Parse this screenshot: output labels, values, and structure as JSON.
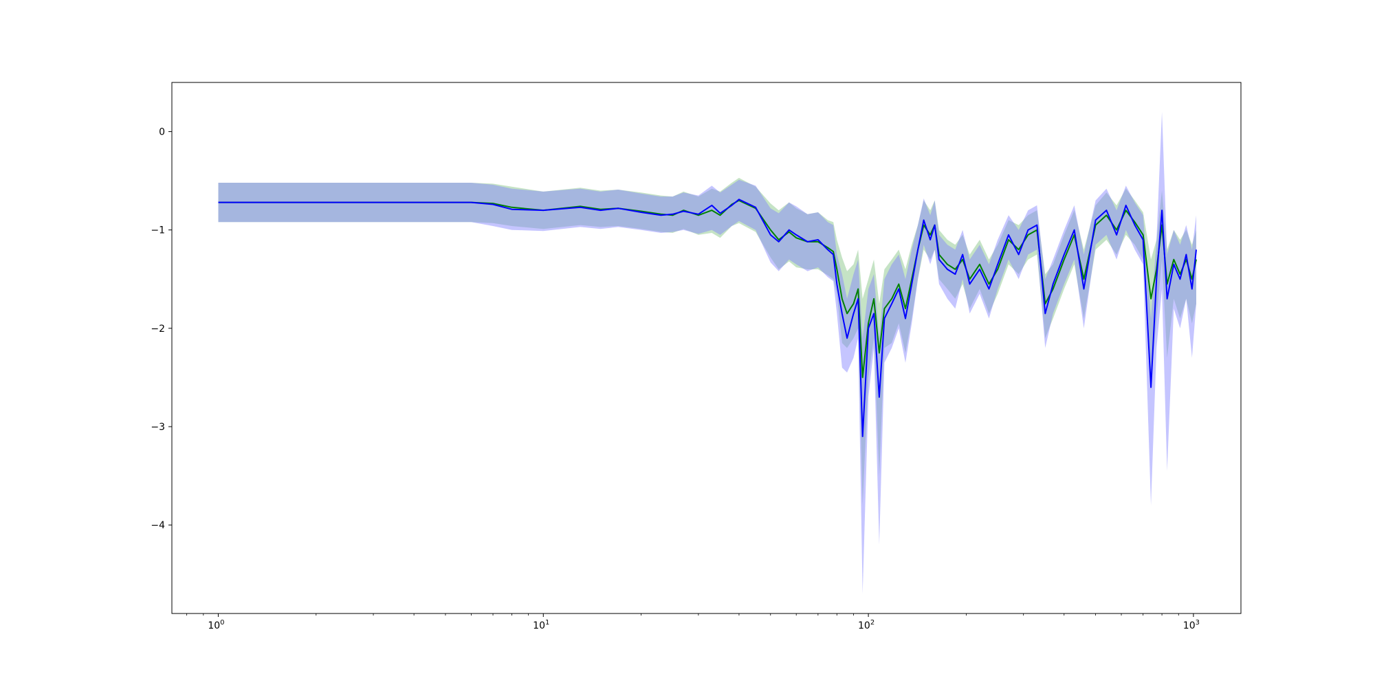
{
  "chart_data": {
    "type": "line",
    "title": "",
    "xlabel": "",
    "ylabel": "",
    "xscale": "log",
    "xlim": [
      0.72,
      1400
    ],
    "ylim": [
      -4.9,
      0.5
    ],
    "grid": false,
    "legend": "none",
    "x_ticks": [
      {
        "value": 1,
        "base": "10",
        "exp": "0"
      },
      {
        "value": 10,
        "base": "10",
        "exp": "1"
      },
      {
        "value": 100,
        "base": "10",
        "exp": "2"
      },
      {
        "value": 1000,
        "base": "10",
        "exp": "3"
      }
    ],
    "y_ticks": [
      {
        "value": 0,
        "label": "0"
      },
      {
        "value": -1,
        "label": "−1"
      },
      {
        "value": -2,
        "label": "−2"
      },
      {
        "value": -3,
        "label": "−3"
      },
      {
        "value": -4,
        "label": "−4"
      }
    ],
    "series": [
      {
        "color": "#008000",
        "band_color": "#7fc07f",
        "band_opacity": 0.45,
        "points": [
          [
            1,
            -0.72,
            -0.92,
            -0.52
          ],
          [
            6,
            -0.72,
            -0.92,
            -0.52
          ],
          [
            7,
            -0.73,
            -0.93,
            -0.53
          ],
          [
            8,
            -0.77,
            -0.96,
            -0.56
          ],
          [
            10,
            -0.8,
            -0.99,
            -0.61
          ],
          [
            13,
            -0.76,
            -0.95,
            -0.57
          ],
          [
            15,
            -0.79,
            -0.97,
            -0.6
          ],
          [
            17,
            -0.78,
            -0.96,
            -0.59
          ],
          [
            20,
            -0.81,
            -0.99,
            -0.62
          ],
          [
            23,
            -0.84,
            -1.02,
            -0.65
          ],
          [
            25,
            -0.85,
            -1.03,
            -0.66
          ],
          [
            27,
            -0.8,
            -0.99,
            -0.61
          ],
          [
            30,
            -0.85,
            -1.05,
            -0.66
          ],
          [
            33,
            -0.8,
            -1.03,
            -0.58
          ],
          [
            35,
            -0.85,
            -1.08,
            -0.61
          ],
          [
            38,
            -0.74,
            -0.96,
            -0.52
          ],
          [
            40,
            -0.7,
            -0.93,
            -0.47
          ],
          [
            45,
            -0.78,
            -1.02,
            -0.56
          ],
          [
            50,
            -1.0,
            -1.28,
            -0.73
          ],
          [
            53,
            -1.1,
            -1.4,
            -0.8
          ],
          [
            57,
            -1.02,
            -1.32,
            -0.72
          ],
          [
            60,
            -1.08,
            -1.38,
            -0.78
          ],
          [
            65,
            -1.12,
            -1.4,
            -0.84
          ],
          [
            70,
            -1.12,
            -1.4,
            -0.82
          ],
          [
            75,
            -1.18,
            -1.46,
            -0.9
          ],
          [
            78,
            -1.22,
            -1.5,
            -0.92
          ],
          [
            80,
            -1.4,
            -1.65,
            -1.1
          ],
          [
            83,
            -1.7,
            -2.15,
            -1.28
          ],
          [
            86,
            -1.85,
            -2.2,
            -1.42
          ],
          [
            90,
            -1.75,
            -2.1,
            -1.35
          ],
          [
            93,
            -1.6,
            -2.0,
            -1.2
          ],
          [
            96,
            -2.5,
            -3.8,
            -1.7
          ],
          [
            100,
            -1.95,
            -2.5,
            -1.5
          ],
          [
            104,
            -1.7,
            -2.1,
            -1.3
          ],
          [
            108,
            -2.25,
            -3.5,
            -1.75
          ],
          [
            112,
            -1.8,
            -2.2,
            -1.4
          ],
          [
            118,
            -1.7,
            -2.15,
            -1.3
          ],
          [
            124,
            -1.55,
            -1.95,
            -1.2
          ],
          [
            130,
            -1.8,
            -2.25,
            -1.4
          ],
          [
            136,
            -1.5,
            -1.9,
            -1.15
          ],
          [
            142,
            -1.2,
            -1.5,
            -0.95
          ],
          [
            148,
            -0.95,
            -1.2,
            -0.7
          ],
          [
            155,
            -1.05,
            -1.3,
            -0.8
          ],
          [
            160,
            -0.95,
            -1.2,
            -0.7
          ],
          [
            165,
            -1.25,
            -1.5,
            -1.0
          ],
          [
            175,
            -1.35,
            -1.6,
            -1.1
          ],
          [
            185,
            -1.4,
            -1.7,
            -1.15
          ],
          [
            195,
            -1.3,
            -1.55,
            -1.05
          ],
          [
            205,
            -1.5,
            -1.8,
            -1.25
          ],
          [
            220,
            -1.35,
            -1.6,
            -1.1
          ],
          [
            235,
            -1.55,
            -1.85,
            -1.3
          ],
          [
            250,
            -1.4,
            -1.65,
            -1.15
          ],
          [
            270,
            -1.1,
            -1.35,
            -0.9
          ],
          [
            290,
            -1.2,
            -1.45,
            -0.95
          ],
          [
            310,
            -1.05,
            -1.3,
            -0.85
          ],
          [
            330,
            -1.0,
            -1.25,
            -0.8
          ],
          [
            350,
            -1.75,
            -2.1,
            -1.45
          ],
          [
            370,
            -1.6,
            -1.9,
            -1.35
          ],
          [
            400,
            -1.3,
            -1.6,
            -1.05
          ],
          [
            430,
            -1.05,
            -1.35,
            -0.8
          ],
          [
            460,
            -1.5,
            -1.9,
            -1.2
          ],
          [
            500,
            -0.95,
            -1.2,
            -0.75
          ],
          [
            540,
            -0.85,
            -1.1,
            -0.62
          ],
          [
            580,
            -1.0,
            -1.25,
            -0.75
          ],
          [
            620,
            -0.8,
            -1.05,
            -0.58
          ],
          [
            660,
            -0.92,
            -1.15,
            -0.7
          ],
          [
            700,
            -1.05,
            -1.3,
            -0.82
          ],
          [
            740,
            -1.7,
            -2.6,
            -1.3
          ],
          [
            770,
            -1.4,
            -1.9,
            -1.1
          ],
          [
            800,
            -0.95,
            -1.3,
            -0.6
          ],
          [
            830,
            -1.55,
            -2.3,
            -1.2
          ],
          [
            870,
            -1.3,
            -1.7,
            -1.0
          ],
          [
            910,
            -1.45,
            -1.9,
            -1.1
          ],
          [
            950,
            -1.3,
            -1.7,
            -1.0
          ],
          [
            990,
            -1.5,
            -1.95,
            -1.15
          ],
          [
            1020,
            -1.3,
            -1.75,
            -1.0
          ]
        ]
      },
      {
        "color": "#0000ff",
        "band_color": "#7f7fff",
        "band_opacity": 0.45,
        "points": [
          [
            1,
            -0.72,
            -0.92,
            -0.52
          ],
          [
            6,
            -0.72,
            -0.92,
            -0.52
          ],
          [
            7,
            -0.74,
            -0.96,
            -0.54
          ],
          [
            8,
            -0.79,
            -1.0,
            -0.58
          ],
          [
            10,
            -0.8,
            -1.01,
            -0.61
          ],
          [
            13,
            -0.77,
            -0.97,
            -0.58
          ],
          [
            15,
            -0.8,
            -0.99,
            -0.61
          ],
          [
            17,
            -0.78,
            -0.97,
            -0.59
          ],
          [
            20,
            -0.82,
            -1.0,
            -0.63
          ],
          [
            23,
            -0.85,
            -1.03,
            -0.66
          ],
          [
            25,
            -0.84,
            -1.02,
            -0.66
          ],
          [
            27,
            -0.81,
            -1.0,
            -0.62
          ],
          [
            30,
            -0.84,
            -1.04,
            -0.65
          ],
          [
            33,
            -0.75,
            -1.0,
            -0.55
          ],
          [
            35,
            -0.83,
            -1.05,
            -0.62
          ],
          [
            38,
            -0.75,
            -0.96,
            -0.54
          ],
          [
            40,
            -0.69,
            -0.91,
            -0.49
          ],
          [
            45,
            -0.77,
            -1.0,
            -0.55
          ],
          [
            50,
            -1.05,
            -1.33,
            -0.78
          ],
          [
            53,
            -1.12,
            -1.42,
            -0.83
          ],
          [
            57,
            -1.0,
            -1.3,
            -0.72
          ],
          [
            60,
            -1.05,
            -1.35,
            -0.76
          ],
          [
            65,
            -1.12,
            -1.42,
            -0.84
          ],
          [
            70,
            -1.1,
            -1.38,
            -0.82
          ],
          [
            75,
            -1.2,
            -1.48,
            -0.92
          ],
          [
            78,
            -1.25,
            -1.52,
            -0.95
          ],
          [
            80,
            -1.55,
            -1.85,
            -1.25
          ],
          [
            83,
            -1.85,
            -2.4,
            -1.45
          ],
          [
            86,
            -2.1,
            -2.45,
            -1.7
          ],
          [
            90,
            -1.85,
            -2.3,
            -1.45
          ],
          [
            93,
            -1.7,
            -2.1,
            -1.3
          ],
          [
            96,
            -3.1,
            -4.7,
            -2.1
          ],
          [
            100,
            -2.0,
            -2.7,
            -1.6
          ],
          [
            104,
            -1.85,
            -2.2,
            -1.45
          ],
          [
            108,
            -2.7,
            -4.2,
            -2.1
          ],
          [
            112,
            -1.9,
            -2.35,
            -1.5
          ],
          [
            118,
            -1.75,
            -2.2,
            -1.35
          ],
          [
            124,
            -1.6,
            -2.0,
            -1.25
          ],
          [
            130,
            -1.9,
            -2.35,
            -1.5
          ],
          [
            136,
            -1.55,
            -1.95,
            -1.2
          ],
          [
            142,
            -1.2,
            -1.5,
            -0.95
          ],
          [
            148,
            -0.9,
            -1.15,
            -0.68
          ],
          [
            155,
            -1.1,
            -1.35,
            -0.85
          ],
          [
            160,
            -0.95,
            -1.2,
            -0.7
          ],
          [
            165,
            -1.3,
            -1.55,
            -1.05
          ],
          [
            175,
            -1.4,
            -1.7,
            -1.15
          ],
          [
            185,
            -1.45,
            -1.8,
            -1.2
          ],
          [
            195,
            -1.25,
            -1.5,
            -1.0
          ],
          [
            205,
            -1.55,
            -1.85,
            -1.3
          ],
          [
            220,
            -1.4,
            -1.65,
            -1.15
          ],
          [
            235,
            -1.6,
            -1.9,
            -1.35
          ],
          [
            250,
            -1.35,
            -1.6,
            -1.1
          ],
          [
            270,
            -1.05,
            -1.3,
            -0.85
          ],
          [
            290,
            -1.25,
            -1.5,
            -1.0
          ],
          [
            310,
            -1.0,
            -1.25,
            -0.8
          ],
          [
            330,
            -0.95,
            -1.2,
            -0.75
          ],
          [
            350,
            -1.85,
            -2.2,
            -1.5
          ],
          [
            370,
            -1.55,
            -1.85,
            -1.3
          ],
          [
            400,
            -1.25,
            -1.55,
            -1.0
          ],
          [
            430,
            -1.0,
            -1.3,
            -0.75
          ],
          [
            460,
            -1.6,
            -2.0,
            -1.25
          ],
          [
            500,
            -0.9,
            -1.15,
            -0.7
          ],
          [
            540,
            -0.8,
            -1.05,
            -0.58
          ],
          [
            580,
            -1.05,
            -1.3,
            -0.8
          ],
          [
            620,
            -0.75,
            -1.0,
            -0.55
          ],
          [
            660,
            -0.95,
            -1.2,
            -0.72
          ],
          [
            700,
            -1.1,
            -1.35,
            -0.85
          ],
          [
            740,
            -2.6,
            -3.8,
            -1.9
          ],
          [
            770,
            -1.5,
            -2.2,
            -1.1
          ],
          [
            800,
            -0.8,
            -1.6,
            0.2
          ],
          [
            830,
            -1.7,
            -3.45,
            -1.25
          ],
          [
            870,
            -1.35,
            -1.8,
            -1.0
          ],
          [
            910,
            -1.5,
            -2.0,
            -1.15
          ],
          [
            950,
            -1.25,
            -1.7,
            -0.95
          ],
          [
            990,
            -1.6,
            -2.3,
            -1.2
          ],
          [
            1020,
            -1.2,
            -1.75,
            -0.85
          ]
        ]
      }
    ]
  }
}
